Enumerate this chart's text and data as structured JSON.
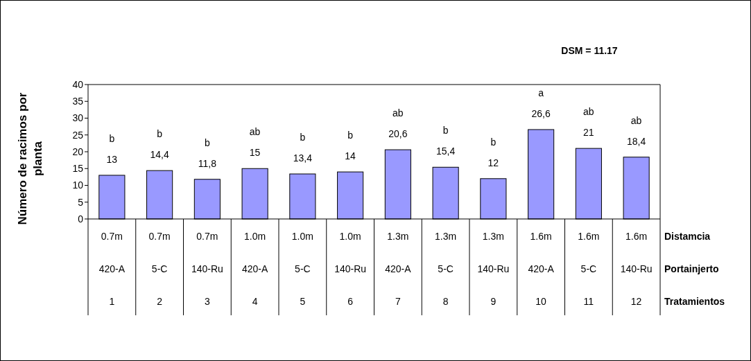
{
  "chart_data": {
    "type": "bar",
    "ylabel": "Número de racimos por planta",
    "categories": [
      "0.7m\n420-A\n1",
      "0.7m\n5-C\n2",
      "0.7m\n140-Ru\n3",
      "1.0m\n420-A\n4",
      "1.0m\n5-C\n5",
      "1.0m\n140-Ru\n6",
      "1.3m\n420-A\n7",
      "1.3m\n5-C\n8",
      "1.3m\n140-Ru\n9",
      "1.6m\n420-A\n10",
      "1.6m\n5-C\n11",
      "1.6m\n140-Ru\n12"
    ],
    "values": [
      13,
      14.4,
      11.8,
      15,
      13.4,
      14,
      20.6,
      15.4,
      12,
      26.6,
      21,
      18.4
    ],
    "value_labels": [
      "13",
      "14,4",
      "11,8",
      "15",
      "13,4",
      "14",
      "20,6",
      "15,4",
      "12",
      "26,6",
      "21",
      "18,4"
    ],
    "color": "#9999ff",
    "ylim": [
      0,
      40
    ],
    "yticks": [
      0,
      5,
      10,
      15,
      20,
      25,
      30,
      35,
      40
    ],
    "grid": false,
    "annotations": [
      "DSM = 11.17",
      "Distamcia",
      "Portainjerto",
      "Tratamientos",
      "b",
      "b",
      "b",
      "ab",
      "b",
      "b",
      "ab",
      "b",
      "b",
      "a",
      "ab",
      "ab"
    ]
  }
}
